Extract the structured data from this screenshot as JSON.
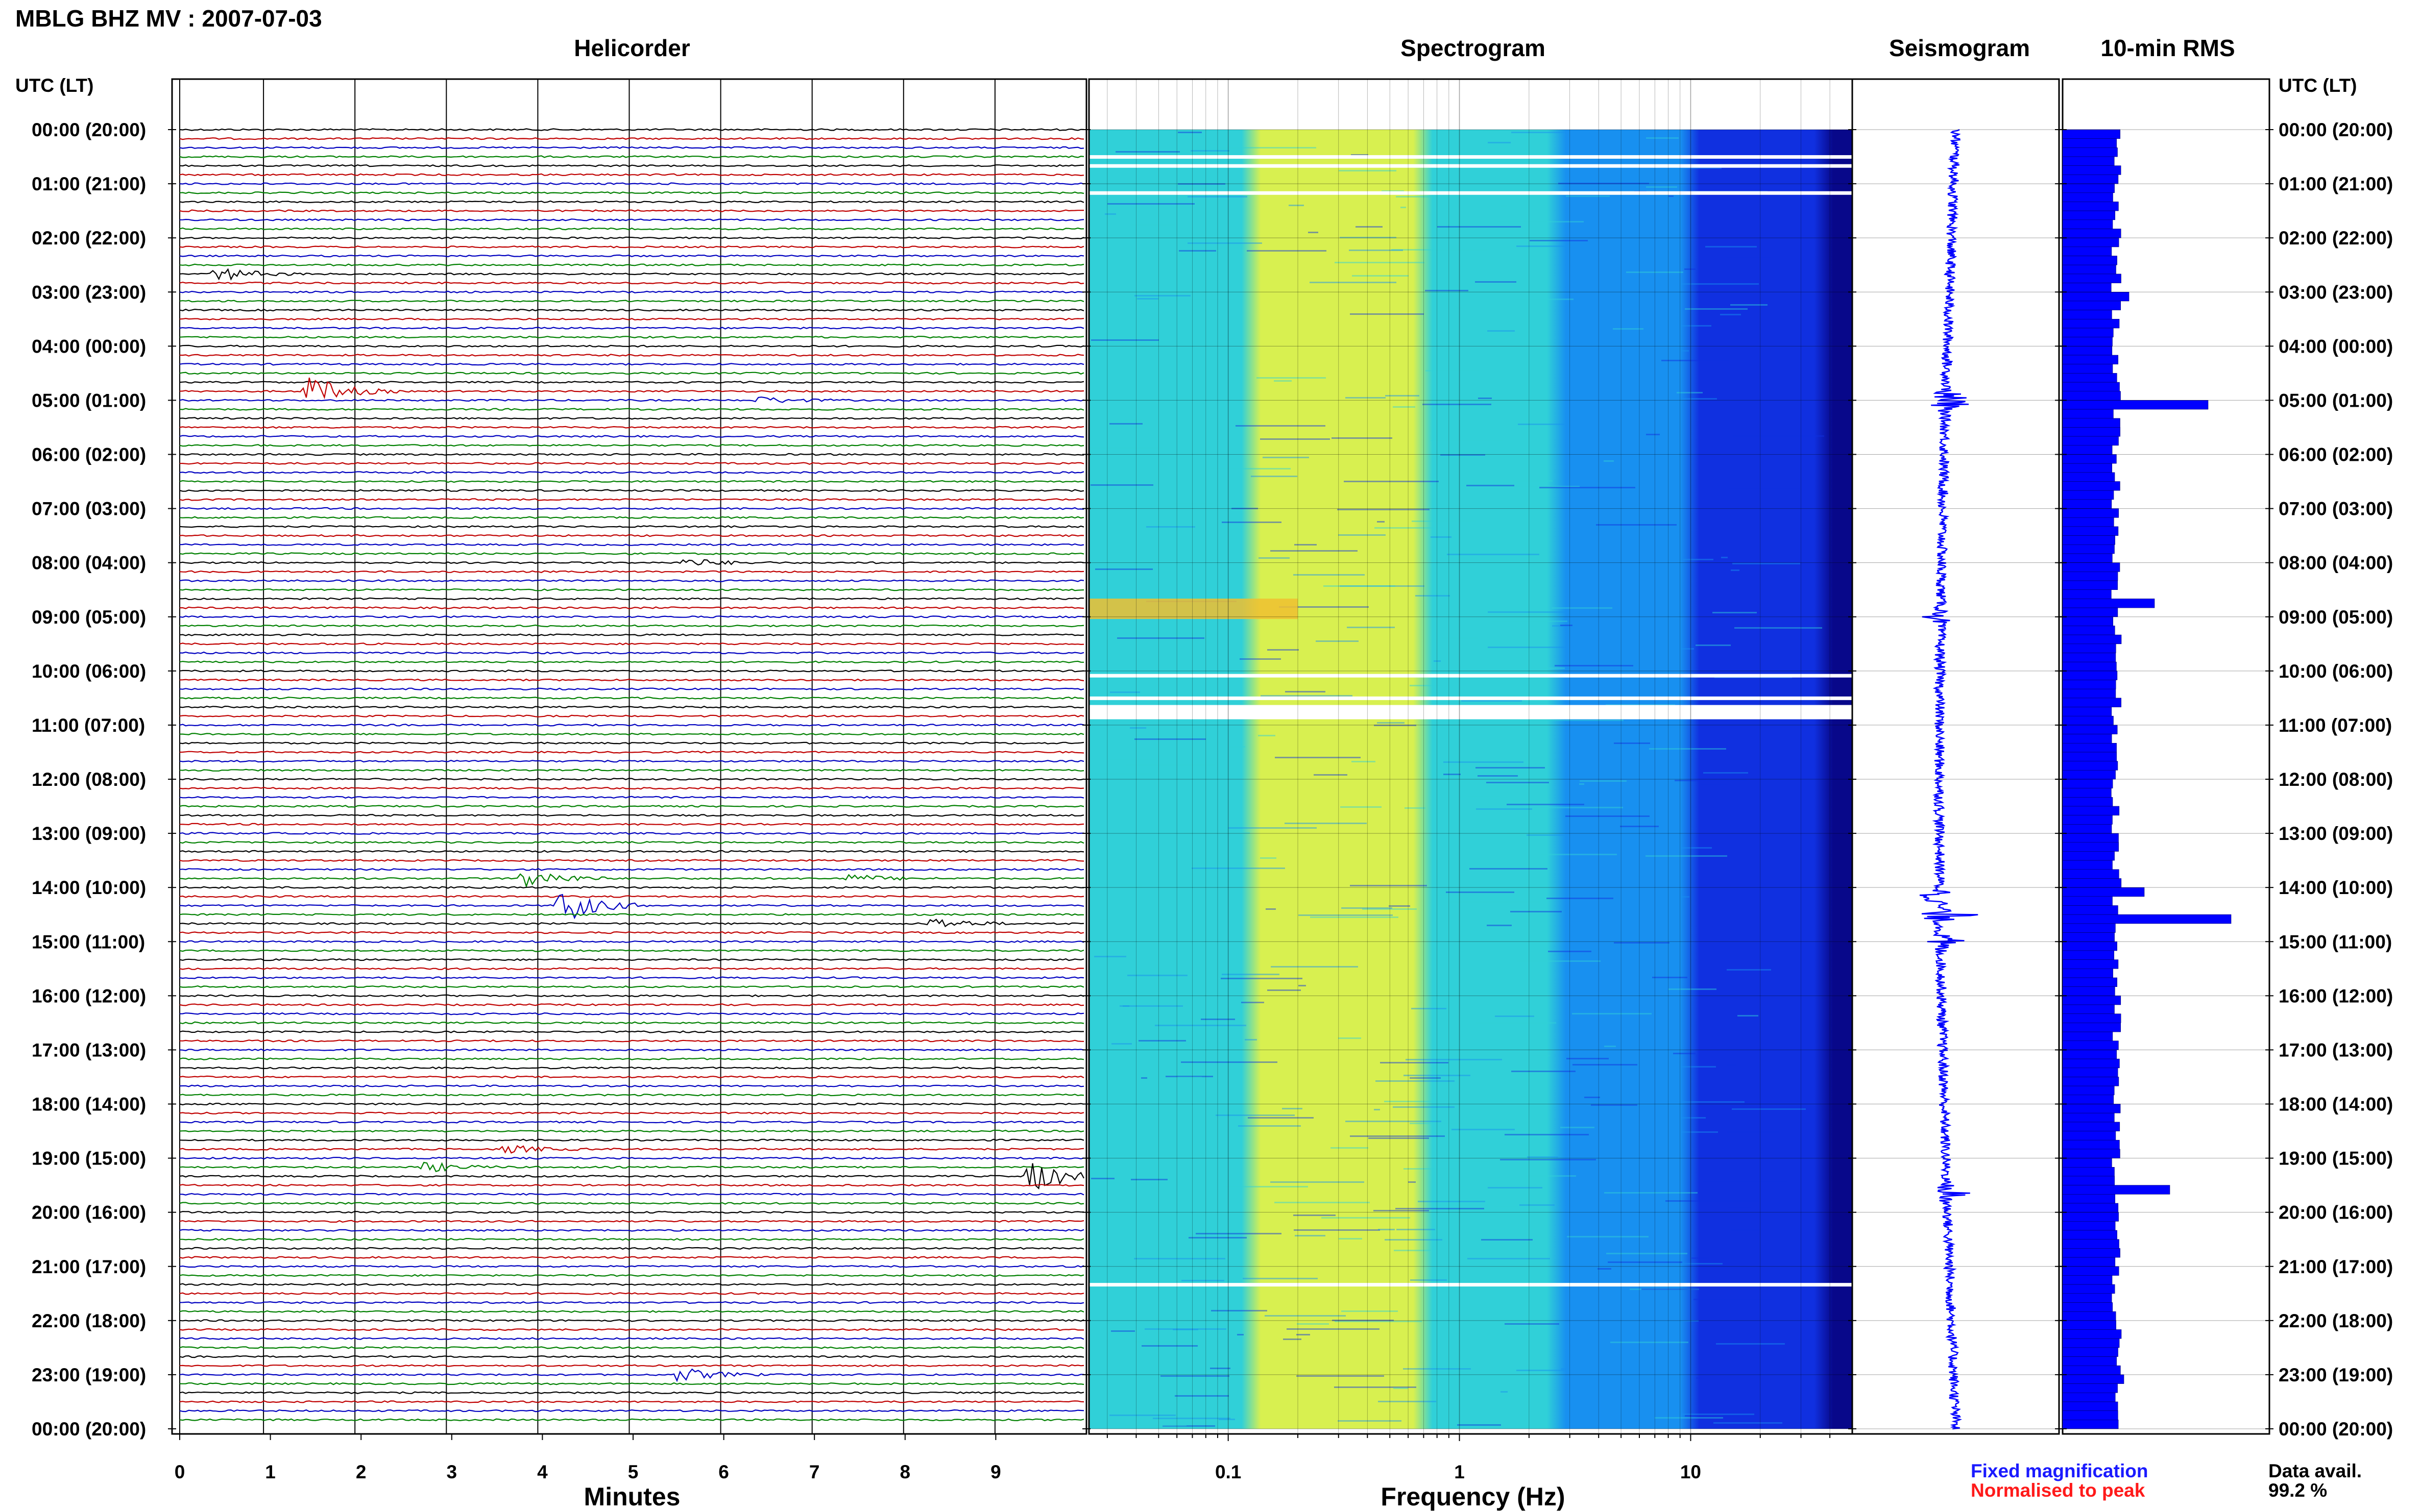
{
  "figure": {
    "title": "MBLG BHZ MV : 2007-07-03",
    "utc_label": "UTC (LT)",
    "legend": {
      "fixed_label": "Fixed magnification",
      "fixed_color": "#1a1aff",
      "normalised_label": "Normalised to peak",
      "normalised_color": "#ff1a1a"
    },
    "availability": {
      "label": "Data avail.",
      "value": "99.2 %"
    }
  },
  "chart_data": [
    {
      "type": "line",
      "title": "Helicorder",
      "xlabel": "Minutes",
      "x_ticks": [
        "0",
        "1",
        "2",
        "3",
        "4",
        "5",
        "6",
        "7",
        "8",
        "9"
      ],
      "xlim": [
        0,
        10
      ],
      "rows_per_hour": 6,
      "trace_colors": [
        "#000000",
        "#c00000",
        "#0000c0",
        "#008000"
      ],
      "events": [
        {
          "time": "02:40",
          "minute": 0.5,
          "amp": 0.7
        },
        {
          "time": "04:50",
          "minute": 1.5,
          "amp": 1.6
        },
        {
          "time": "05:00",
          "minute": 6.5,
          "amp": 0.35
        },
        {
          "time": "08:00",
          "minute": 5.7,
          "amp": 0.4
        },
        {
          "time": "13:50",
          "minute": 3.9,
          "amp": 1.1
        },
        {
          "time": "13:50",
          "minute": 7.5,
          "amp": 0.4
        },
        {
          "time": "14:20",
          "minute": 4.3,
          "amp": 1.8
        },
        {
          "time": "14:40",
          "minute": 8.4,
          "amp": 0.6
        },
        {
          "time": "18:50",
          "minute": 3.7,
          "amp": 0.4
        },
        {
          "time": "19:10",
          "minute": 2.8,
          "amp": 0.5
        },
        {
          "time": "19:20",
          "minute": 9.5,
          "amp": 1.6
        },
        {
          "time": "23:00",
          "minute": 5.6,
          "amp": 0.7
        }
      ],
      "hour_labels": [
        "00:00 (20:00)",
        "01:00 (21:00)",
        "02:00 (22:00)",
        "03:00 (23:00)",
        "04:00 (00:00)",
        "05:00 (01:00)",
        "06:00 (02:00)",
        "07:00 (03:00)",
        "08:00 (04:00)",
        "09:00 (05:00)",
        "10:00 (06:00)",
        "11:00 (07:00)",
        "12:00 (08:00)",
        "13:00 (09:00)",
        "14:00 (10:00)",
        "15:00 (11:00)",
        "16:00 (12:00)",
        "17:00 (13:00)",
        "18:00 (14:00)",
        "19:00 (15:00)",
        "20:00 (16:00)",
        "21:00 (17:00)",
        "22:00 (18:00)",
        "23:00 (19:00)",
        "00:00 (20:00)"
      ]
    },
    {
      "type": "heatmap",
      "title": "Spectrogram",
      "xlabel": "Frequency (Hz)",
      "x_scale": "log",
      "xlim": [
        0.025,
        50
      ],
      "x_ticks": [
        {
          "value": 0.1,
          "label": "0.1"
        },
        {
          "value": 1,
          "label": "1"
        },
        {
          "value": 10,
          "label": "10"
        }
      ],
      "colormap": [
        "#08088a",
        "#1030e0",
        "#1890f0",
        "#30d0d8",
        "#d8f050",
        "#f0a020",
        "#e05010"
      ],
      "peak_frequency_hz": 0.25,
      "gaps_utc": [
        "00:30",
        "00:40",
        "01:10",
        "10:05",
        "10:30",
        "21:20"
      ],
      "warm_patch": {
        "time": "08:50",
        "freq_range": [
          0.025,
          0.2
        ]
      }
    },
    {
      "type": "line",
      "title": "Seismogram",
      "bursts": [
        {
          "time": "05:00",
          "amp": 0.8
        },
        {
          "time": "09:00",
          "amp": 0.2
        },
        {
          "time": "14:10",
          "amp": 0.4
        },
        {
          "time": "14:30",
          "amp": 0.5
        },
        {
          "time": "15:00",
          "amp": 0.35
        },
        {
          "time": "19:40",
          "amp": 0.45
        }
      ]
    },
    {
      "type": "bar",
      "title": "10-min RMS",
      "orientation": "horizontal",
      "bar_color": "#0000ff",
      "interval_minutes": 10,
      "baseline": 1.0,
      "peaks": [
        {
          "time": "03:00",
          "value": 1.3
        },
        {
          "time": "05:00",
          "value": 2.85
        },
        {
          "time": "08:40",
          "value": 1.8
        },
        {
          "time": "14:00",
          "value": 1.6
        },
        {
          "time": "14:30",
          "value": 3.3
        },
        {
          "time": "19:30",
          "value": 2.1
        },
        {
          "time": "23:00",
          "value": 1.2
        }
      ]
    }
  ]
}
